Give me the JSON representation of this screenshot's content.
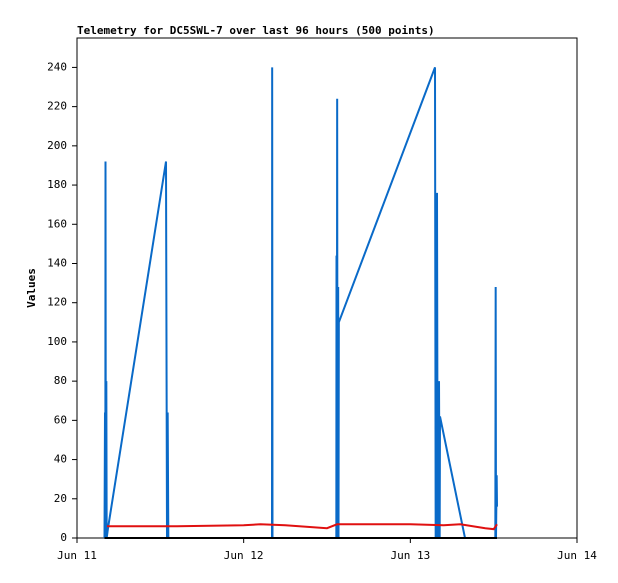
{
  "chart_data": {
    "type": "line",
    "title": "Telemetry for DC5SWL-7 over last 96 hours (500 points)",
    "y_label": "Values",
    "xlim": [
      0,
      3
    ],
    "xticks": [
      {
        "value": 0,
        "label": "Jun 11"
      },
      {
        "value": 1,
        "label": "Jun 12"
      },
      {
        "value": 2,
        "label": "Jun 13"
      },
      {
        "value": 3,
        "label": "Jun 14"
      }
    ],
    "ylim": [
      0,
      255
    ],
    "yticks": [
      0,
      20,
      40,
      60,
      80,
      100,
      120,
      140,
      160,
      180,
      200,
      220,
      240
    ],
    "series": [
      {
        "color": "#0a6ac8",
        "x": [
          0.165,
          0.168,
          0.17,
          0.171,
          0.173,
          0.176,
          0.178,
          0.186,
          0.534,
          0.54,
          0.544,
          0.548,
          1.17,
          1.171,
          1.173,
          1.556,
          1.557,
          1.559,
          1.561,
          1.563,
          1.567,
          1.569,
          1.571,
          2.148,
          2.152,
          2.16,
          2.164,
          2.172,
          2.176,
          2.178,
          2.328,
          2.51,
          2.512,
          2.514,
          2.518,
          2.52
        ],
        "values": [
          0,
          64,
          0,
          192,
          0,
          80,
          0,
          5,
          192,
          0,
          64,
          0,
          0,
          240,
          0,
          0,
          144,
          0,
          224,
          0,
          128,
          0,
          110,
          240,
          0,
          176,
          0,
          80,
          0,
          62,
          0,
          0,
          128,
          0,
          32,
          16
        ]
      },
      {
        "color": "#e01010",
        "x": [
          0.18,
          0.6,
          1.0,
          1.1,
          1.25,
          1.5,
          1.56,
          2.0,
          2.2,
          2.3,
          2.45,
          2.5,
          2.52
        ],
        "values": [
          6,
          6,
          6.5,
          7,
          6.5,
          5,
          7,
          7,
          6.5,
          7,
          5,
          4.5,
          7
        ]
      },
      {
        "color": "#000000",
        "x": [
          0.165,
          2.52
        ],
        "values": [
          0,
          0
        ]
      }
    ]
  }
}
